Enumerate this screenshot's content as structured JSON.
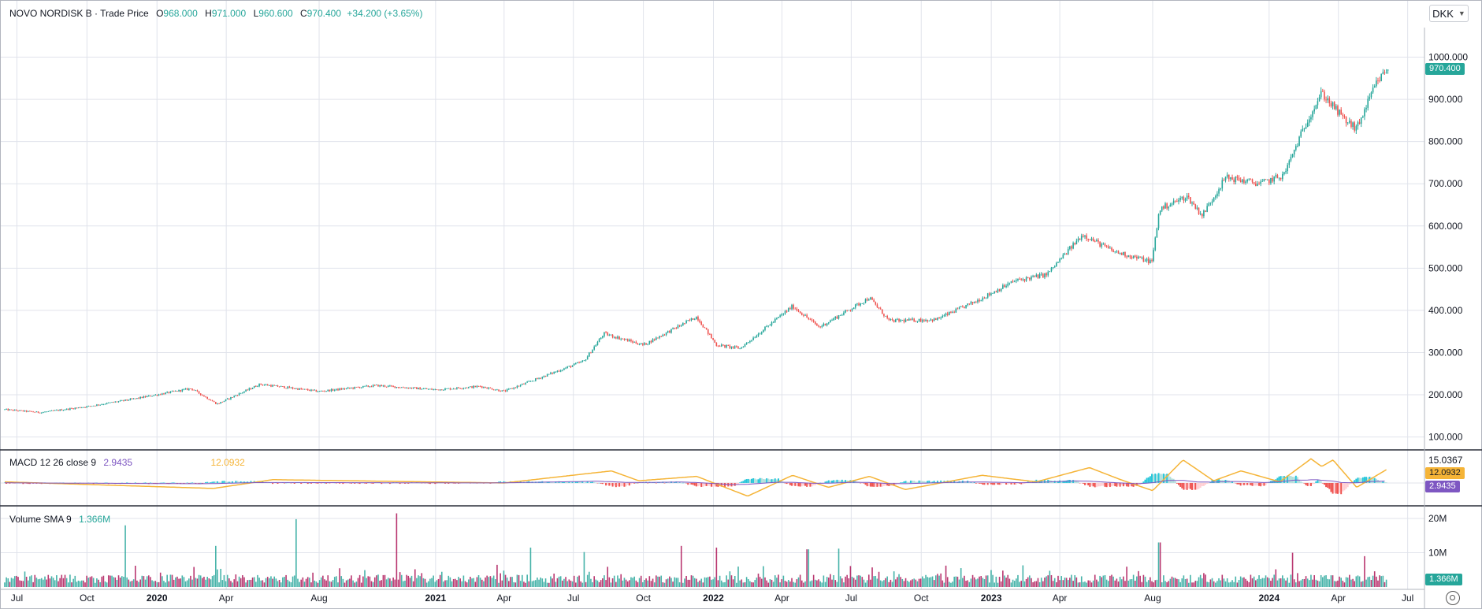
{
  "header": {
    "symbol": "NOVO NORDISK B",
    "separator": "·",
    "source": "Trade Price",
    "o_label": "O",
    "o_value": "968.000",
    "h_label": "H",
    "h_value": "971.000",
    "l_label": "L",
    "l_value": "960.600",
    "c_label": "C",
    "c_value": "970.400",
    "change": "+34.200 (+3.65%)"
  },
  "currency_selector": {
    "value": "DKK",
    "icon": "chevron-down-icon"
  },
  "settings": {
    "icon": "gear-icon"
  },
  "colors": {
    "up": "#26a69a",
    "down": "#ef5350",
    "macd_line": "#7e57c2",
    "signal_line": "#f5b437",
    "hist_up_strong": "#26c6da",
    "hist_up_weak": "#b2dfdb",
    "hist_down_strong": "#ef5350",
    "hist_down_weak": "#ffcdd2",
    "volume_up": "#26a69a",
    "volume_down": "#ad1457"
  },
  "chart_data": [
    {
      "type": "candlestick",
      "panel": "price",
      "title": "NOVO NORDISK B · Trade Price",
      "unit": "DKK",
      "ylim": [
        75,
        1070
      ],
      "yticks": [
        100,
        200,
        300,
        400,
        500,
        600,
        700,
        800,
        900,
        1000
      ],
      "ytick_labels": [
        "100.000",
        "200.000",
        "300.000",
        "400.000",
        "500.000",
        "600.000",
        "700.000",
        "800.000",
        "900.000",
        "1000.000"
      ],
      "xlim": [
        "2019-06-15",
        "2024-07-20"
      ],
      "xticks": [
        {
          "date": "2019-07-01",
          "label": "Jul"
        },
        {
          "date": "2019-10-01",
          "label": "Oct"
        },
        {
          "date": "2020-01-01",
          "label": "2020"
        },
        {
          "date": "2020-04-01",
          "label": "Apr"
        },
        {
          "date": "2020-08-01",
          "label": "Aug"
        },
        {
          "date": "2021-01-01",
          "label": "2021"
        },
        {
          "date": "2021-04-01",
          "label": "Apr"
        },
        {
          "date": "2021-07-01",
          "label": "Jul"
        },
        {
          "date": "2021-10-01",
          "label": "Oct"
        },
        {
          "date": "2022-01-01",
          "label": "2022"
        },
        {
          "date": "2022-04-01",
          "label": "Apr"
        },
        {
          "date": "2022-07-01",
          "label": "Jul"
        },
        {
          "date": "2022-10-01",
          "label": "Oct"
        },
        {
          "date": "2023-01-01",
          "label": "2023"
        },
        {
          "date": "2023-04-01",
          "label": "Apr"
        },
        {
          "date": "2023-08-01",
          "label": "Aug"
        },
        {
          "date": "2024-01-01",
          "label": "2024"
        },
        {
          "date": "2024-04-01",
          "label": "Apr"
        },
        {
          "date": "2024-07-01",
          "label": "Jul"
        }
      ],
      "close_path": [
        {
          "date": "2019-06-15",
          "close": 165
        },
        {
          "date": "2019-08-01",
          "close": 158
        },
        {
          "date": "2019-10-01",
          "close": 172
        },
        {
          "date": "2019-12-01",
          "close": 190
        },
        {
          "date": "2020-02-15",
          "close": 215
        },
        {
          "date": "2020-03-20",
          "close": 178
        },
        {
          "date": "2020-05-15",
          "close": 225
        },
        {
          "date": "2020-08-01",
          "close": 208
        },
        {
          "date": "2020-10-15",
          "close": 222
        },
        {
          "date": "2021-01-01",
          "close": 212
        },
        {
          "date": "2021-03-01",
          "close": 220
        },
        {
          "date": "2021-04-01",
          "close": 208
        },
        {
          "date": "2021-06-01",
          "close": 250
        },
        {
          "date": "2021-07-15",
          "close": 280
        },
        {
          "date": "2021-08-10",
          "close": 345
        },
        {
          "date": "2021-10-01",
          "close": 318
        },
        {
          "date": "2021-12-10",
          "close": 385
        },
        {
          "date": "2022-01-05",
          "close": 318
        },
        {
          "date": "2022-02-05",
          "close": 310
        },
        {
          "date": "2022-04-15",
          "close": 410
        },
        {
          "date": "2022-05-20",
          "close": 360
        },
        {
          "date": "2022-07-25",
          "close": 430
        },
        {
          "date": "2022-08-20",
          "close": 375
        },
        {
          "date": "2022-10-20",
          "close": 378
        },
        {
          "date": "2022-12-10",
          "close": 420
        },
        {
          "date": "2023-02-01",
          "close": 470
        },
        {
          "date": "2023-03-15",
          "close": 485
        },
        {
          "date": "2023-05-01",
          "close": 580
        },
        {
          "date": "2023-06-10",
          "close": 540
        },
        {
          "date": "2023-07-31",
          "close": 515
        },
        {
          "date": "2023-08-10",
          "close": 640
        },
        {
          "date": "2023-09-15",
          "close": 670
        },
        {
          "date": "2023-10-05",
          "close": 625
        },
        {
          "date": "2023-11-05",
          "close": 715
        },
        {
          "date": "2023-12-20",
          "close": 700
        },
        {
          "date": "2024-01-20",
          "close": 720
        },
        {
          "date": "2024-02-20",
          "close": 850
        },
        {
          "date": "2024-03-10",
          "close": 915
        },
        {
          "date": "2024-04-10",
          "close": 850
        },
        {
          "date": "2024-04-25",
          "close": 830
        },
        {
          "date": "2024-05-20",
          "close": 935
        },
        {
          "date": "2024-06-03",
          "close": 970.4
        }
      ],
      "last_candle": {
        "open": 968.0,
        "high": 971.0,
        "low": 960.6,
        "close": 970.4,
        "change": 34.2,
        "change_pct": 3.65
      },
      "last_price_label": "970.400"
    },
    {
      "type": "line",
      "panel": "macd",
      "title": "MACD 12 26 close 9",
      "series": [
        {
          "name": "MACD",
          "last_value": 2.9435
        },
        {
          "name": "Signal",
          "last_value": 12.0932
        }
      ],
      "legend_values": [
        "2.9435",
        "12.0932"
      ],
      "ytick_labels": [
        "15.0367"
      ],
      "ylim": [
        -18,
        28
      ],
      "signal_path": [
        {
          "date": "2019-06-15",
          "value": 1
        },
        {
          "date": "2020-03-15",
          "value": -5
        },
        {
          "date": "2020-06-01",
          "value": 3
        },
        {
          "date": "2021-04-01",
          "value": 0
        },
        {
          "date": "2021-08-20",
          "value": 11
        },
        {
          "date": "2021-09-25",
          "value": 2
        },
        {
          "date": "2021-12-10",
          "value": 6
        },
        {
          "date": "2022-02-15",
          "value": -12
        },
        {
          "date": "2022-04-15",
          "value": 7
        },
        {
          "date": "2022-06-01",
          "value": -4
        },
        {
          "date": "2022-07-25",
          "value": 6
        },
        {
          "date": "2022-09-10",
          "value": -6
        },
        {
          "date": "2022-12-20",
          "value": 7
        },
        {
          "date": "2023-03-01",
          "value": 1
        },
        {
          "date": "2023-05-10",
          "value": 14
        },
        {
          "date": "2023-06-20",
          "value": 3
        },
        {
          "date": "2023-08-01",
          "value": -7
        },
        {
          "date": "2023-09-10",
          "value": 21
        },
        {
          "date": "2023-10-20",
          "value": 2
        },
        {
          "date": "2023-11-25",
          "value": 11
        },
        {
          "date": "2024-01-15",
          "value": 1
        },
        {
          "date": "2024-02-25",
          "value": 22
        },
        {
          "date": "2024-03-10",
          "value": 15
        },
        {
          "date": "2024-03-25",
          "value": 21
        },
        {
          "date": "2024-04-25",
          "value": -4
        },
        {
          "date": "2024-06-03",
          "value": 12.0932
        }
      ],
      "last_value_labels": [
        "12.0932",
        "2.9435"
      ]
    },
    {
      "type": "bar",
      "panel": "volume",
      "title": "Volume SMA 9",
      "legend_value": "1.366M",
      "ylim": [
        0,
        23000000
      ],
      "yticks": [
        10000000,
        20000000
      ],
      "ytick_labels": [
        "10M",
        "20M"
      ],
      "spikes": [
        {
          "date": "2019-11-20",
          "value": 18000000
        },
        {
          "date": "2020-03-18",
          "value": 12000000
        },
        {
          "date": "2020-07-01",
          "value": 19800000
        },
        {
          "date": "2020-11-10",
          "value": 21500000
        },
        {
          "date": "2021-05-05",
          "value": 11500000
        },
        {
          "date": "2021-07-15",
          "value": 10200000
        },
        {
          "date": "2021-11-20",
          "value": 12000000
        },
        {
          "date": "2022-01-05",
          "value": 11500000
        },
        {
          "date": "2022-05-05",
          "value": 11000000
        },
        {
          "date": "2022-06-15",
          "value": 11200000
        },
        {
          "date": "2023-08-10",
          "value": 13000000
        },
        {
          "date": "2024-02-01",
          "value": 10000000
        },
        {
          "date": "2024-05-05",
          "value": 9000000
        }
      ],
      "last_value_label": "1.366M"
    }
  ]
}
